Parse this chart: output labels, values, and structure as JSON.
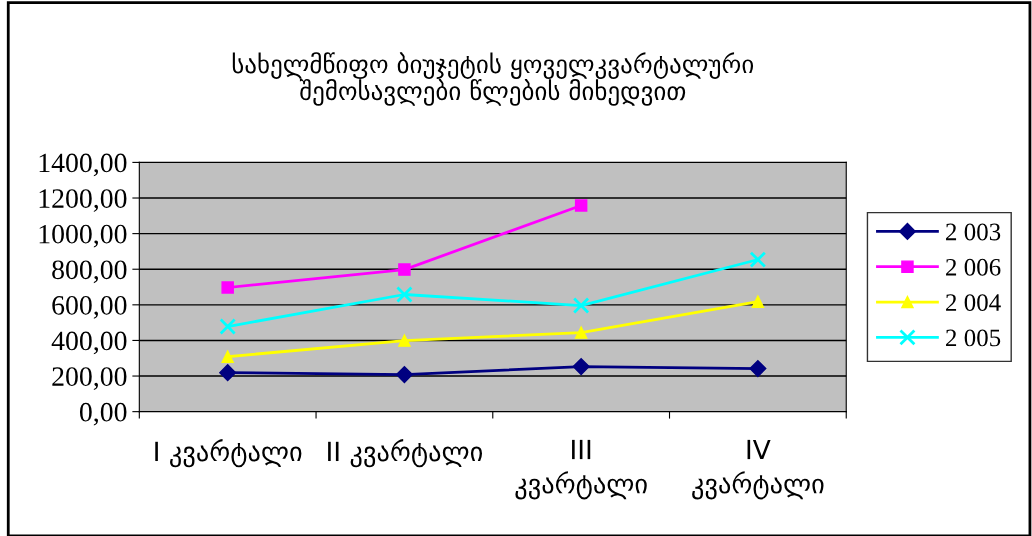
{
  "chart_data": {
    "type": "line",
    "title": "სახელმწიფო ბიუჯეტის ყოველკვარტალური\nშემოსავლები წლების მიხედვით",
    "categories": [
      "I კვარტალი",
      "II კვარტალი",
      "III\nკვარტალი",
      "IV\nკვარტალი"
    ],
    "series": [
      {
        "name": "2 003",
        "color": "#000080",
        "marker": "diamond",
        "values": [
          219,
          208,
          253,
          242
        ]
      },
      {
        "name": "2 006",
        "color": "#ff00ff",
        "marker": "square",
        "values": [
          697,
          798,
          1158,
          null
        ]
      },
      {
        "name": "2 004",
        "color": "#ffff00",
        "marker": "triangle",
        "values": [
          309,
          399,
          444,
          618
        ]
      },
      {
        "name": "2 005",
        "color": "#00ffff",
        "marker": "cross",
        "values": [
          478,
          658,
          596,
          854
        ]
      }
    ],
    "ylim": [
      0,
      1400
    ],
    "yticks": [
      {
        "value": 0,
        "label": "0,00"
      },
      {
        "value": 200,
        "label": "200,00"
      },
      {
        "value": 400,
        "label": "400,00"
      },
      {
        "value": 600,
        "label": "600,00"
      },
      {
        "value": 800,
        "label": "800,00"
      },
      {
        "value": 1000,
        "label": "1000,00"
      },
      {
        "value": 1200,
        "label": "1200,00"
      },
      {
        "value": 1400,
        "label": "1400,00"
      }
    ],
    "grid": "y",
    "legend": "right",
    "line_style": "solid"
  }
}
